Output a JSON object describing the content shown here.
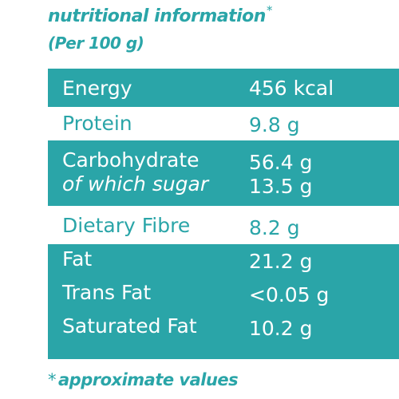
{
  "header": {
    "title": "nutritional information",
    "title_mark": "*",
    "subtitle": "(Per 100 g)"
  },
  "rows": [
    {
      "label": "Energy",
      "value": "456 kcal"
    },
    {
      "label": "Protein",
      "value": "9.8 g"
    },
    {
      "label": "Carbohydrate",
      "value": "56.4 g",
      "sub_label": "of which sugar",
      "sub_value": "13.5 g"
    },
    {
      "label": "Dietary Fibre",
      "value": "8.2 g"
    },
    {
      "label": "Fat",
      "value": "21.2 g"
    },
    {
      "label": "Trans Fat",
      "value": "<0.05 g"
    },
    {
      "label": "Saturated Fat",
      "value": "10.2 g"
    }
  ],
  "footnote": {
    "mark": "*",
    "text": "approximate values"
  },
  "colors": {
    "teal": "#2aa5a8",
    "white": "#ffffff"
  }
}
